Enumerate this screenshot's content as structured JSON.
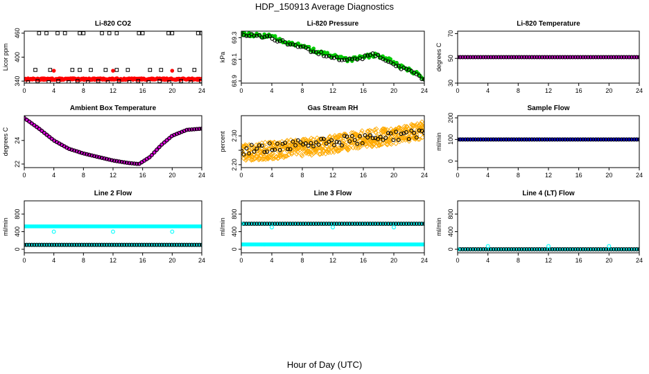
{
  "page": {
    "title": "HDP_150913  Average Diagnostics",
    "x_caption": "Hour of Day (UTC)"
  },
  "chart_data": [
    {
      "id": "co2",
      "type": "scatter",
      "title": "Li-820 CO2",
      "xlabel": "",
      "ylabel": "Licor ppm",
      "xlim": [
        0,
        24
      ],
      "ylim": [
        335,
        465
      ],
      "yticks": [
        340,
        400,
        460
      ],
      "xticks": [
        0,
        4,
        8,
        12,
        16,
        20,
        24
      ],
      "series": [
        {
          "values": {
            "mode": "flat",
            "y": 345,
            "jitter": 2,
            "count": 280
          },
          "color": "#ff0000",
          "symbol": "filled-circle"
        },
        {
          "values": {
            "mode": "list",
            "points": [
              [
                2,
                460
              ],
              [
                3,
                460
              ],
              [
                4.5,
                460
              ],
              [
                5.5,
                460
              ],
              [
                7.5,
                460
              ],
              [
                8,
                460
              ],
              [
                10.5,
                460
              ],
              [
                11.5,
                460
              ],
              [
                12.5,
                460
              ],
              [
                15.5,
                460
              ],
              [
                16,
                460
              ],
              [
                19.5,
                460
              ],
              [
                20,
                460
              ],
              [
                23.5,
                460
              ],
              [
                24,
                460
              ],
              [
                1.5,
                368
              ],
              [
                3.5,
                368
              ],
              [
                6.5,
                368
              ],
              [
                7.5,
                368
              ],
              [
                9,
                368
              ],
              [
                11,
                368
              ],
              [
                12.5,
                368
              ],
              [
                14,
                368
              ],
              [
                17,
                368
              ],
              [
                18.5,
                368
              ],
              [
                21,
                368
              ],
              [
                23,
                368
              ],
              [
                0.5,
                337
              ],
              [
                1.8,
                340
              ],
              [
                3.3,
                337
              ],
              [
                4.6,
                340
              ],
              [
                6,
                337
              ],
              [
                7.2,
                340
              ],
              [
                8.6,
                337
              ],
              [
                10,
                340
              ],
              [
                11.3,
                337
              ],
              [
                12.8,
                340
              ],
              [
                14.2,
                337
              ],
              [
                15.4,
                340
              ],
              [
                16.8,
                337
              ],
              [
                18.3,
                340
              ],
              [
                19.6,
                337
              ],
              [
                21.2,
                340
              ],
              [
                22.5,
                337
              ],
              [
                23.9,
                340
              ]
            ]
          },
          "color": "#000000",
          "symbol": "open-square"
        },
        {
          "values": {
            "mode": "list",
            "points": [
              [
                4,
                366
              ],
              [
                12,
                366
              ],
              [
                20,
                366
              ]
            ]
          },
          "color": "#ff0000",
          "symbol": "filled-circle"
        }
      ]
    },
    {
      "id": "pressure",
      "type": "scatter",
      "title": "Li-820 Pressure",
      "xlabel": "",
      "ylabel": "kPa",
      "xlim": [
        0,
        24
      ],
      "ylim": [
        68.88,
        69.36
      ],
      "yticks": [
        68.9,
        69.1,
        69.3
      ],
      "xticks": [
        0,
        4,
        8,
        12,
        16,
        20,
        24
      ],
      "series": [
        {
          "values": {
            "mode": "curve",
            "anchors": [
              [
                0,
                69.34
              ],
              [
                2,
                69.32
              ],
              [
                4,
                69.31
              ],
              [
                6,
                69.26
              ],
              [
                8,
                69.22
              ],
              [
                10,
                69.17
              ],
              [
                12,
                69.13
              ],
              [
                14,
                69.09
              ],
              [
                16,
                69.12
              ],
              [
                17.5,
                69.14
              ],
              [
                19,
                69.11
              ],
              [
                21,
                69.03
              ],
              [
                23,
                68.97
              ],
              [
                24,
                68.93
              ]
            ],
            "jitter": 0.018,
            "count": 120
          },
          "color": "#00cc00",
          "symbol": "filled-circle"
        },
        {
          "values": {
            "mode": "curve",
            "anchors": [
              [
                0,
                69.34
              ],
              [
                2,
                69.31
              ],
              [
                4,
                69.3
              ],
              [
                6,
                69.25
              ],
              [
                8,
                69.21
              ],
              [
                10,
                69.16
              ],
              [
                12,
                69.12
              ],
              [
                14,
                69.09
              ],
              [
                16,
                69.12
              ],
              [
                17.5,
                69.14
              ],
              [
                19,
                69.1
              ],
              [
                21,
                69.02
              ],
              [
                23,
                68.96
              ],
              [
                24,
                68.92
              ]
            ],
            "jitter": 0.018,
            "count": 72
          },
          "color": "#000000",
          "symbol": "open-circle"
        }
      ]
    },
    {
      "id": "temperature",
      "type": "scatter",
      "title": "Li-820 Temperature",
      "xlabel": "",
      "ylabel": "degrees C",
      "xlim": [
        0,
        24
      ],
      "ylim": [
        30,
        72
      ],
      "yticks": [
        30,
        50,
        70
      ],
      "xticks": [
        0,
        4,
        8,
        12,
        16,
        20,
        24
      ],
      "series": [
        {
          "values": {
            "mode": "flat",
            "y": 51,
            "jitter": 0,
            "count": 100
          },
          "color": "#dd00dd",
          "symbol": "filled-circle"
        },
        {
          "values": {
            "mode": "flat",
            "y": 51,
            "jitter": 0,
            "count": 72
          },
          "color": "#000000",
          "symbol": "open-circle"
        }
      ]
    },
    {
      "id": "ambient",
      "type": "scatter",
      "title": "Ambient Box Temperature",
      "xlabel": "",
      "ylabel": "degrees C",
      "xlim": [
        0,
        24
      ],
      "ylim": [
        21.7,
        26.1
      ],
      "yticks": [
        22,
        24
      ],
      "xticks": [
        0,
        4,
        8,
        12,
        16,
        20,
        24
      ],
      "series": [
        {
          "values": {
            "mode": "curve",
            "anchors": [
              [
                0,
                25.9
              ],
              [
                2,
                25.0
              ],
              [
                4,
                24.0
              ],
              [
                6,
                23.3
              ],
              [
                8,
                22.9
              ],
              [
                10,
                22.6
              ],
              [
                12,
                22.3
              ],
              [
                14,
                22.1
              ],
              [
                15.5,
                22.0
              ],
              [
                17,
                22.6
              ],
              [
                18.5,
                23.6
              ],
              [
                20,
                24.4
              ],
              [
                22,
                24.9
              ],
              [
                24,
                25.0
              ]
            ],
            "jitter": 0,
            "count": 90
          },
          "color": "#dd00dd",
          "symbol": "filled-circle"
        },
        {
          "values": {
            "mode": "curve",
            "anchors": [
              [
                0,
                25.9
              ],
              [
                2,
                25.0
              ],
              [
                4,
                24.0
              ],
              [
                6,
                23.3
              ],
              [
                8,
                22.9
              ],
              [
                10,
                22.6
              ],
              [
                12,
                22.3
              ],
              [
                14,
                22.1
              ],
              [
                15.5,
                22.0
              ],
              [
                17,
                22.6
              ],
              [
                18.5,
                23.6
              ],
              [
                20,
                24.4
              ],
              [
                22,
                24.9
              ],
              [
                24,
                25.0
              ]
            ],
            "jitter": 0,
            "count": 72
          },
          "color": "#000000",
          "symbol": "open-circle"
        }
      ]
    },
    {
      "id": "rh",
      "type": "scatter",
      "title": "Gas Stream RH",
      "xlabel": "",
      "ylabel": "percent",
      "xlim": [
        0,
        24
      ],
      "ylim": [
        2.19,
        2.37
      ],
      "yticks": [
        2.2,
        2.25,
        2.3
      ],
      "ytick_labels": [
        "2.20",
        "",
        "2.30"
      ],
      "xticks": [
        0,
        4,
        8,
        12,
        16,
        20,
        24
      ],
      "series": [
        {
          "values": {
            "mode": "curve",
            "anchors": [
              [
                0,
                2.24
              ],
              [
                4,
                2.25
              ],
              [
                8,
                2.26
              ],
              [
                12,
                2.27
              ],
              [
                16,
                2.29
              ],
              [
                20,
                2.3
              ],
              [
                24,
                2.32
              ]
            ],
            "jitter": 0.03,
            "count": 600
          },
          "color": "#ffaa00",
          "symbol": "open-diamond"
        },
        {
          "values": {
            "mode": "curve",
            "anchors": [
              [
                0,
                2.25
              ],
              [
                4,
                2.26
              ],
              [
                8,
                2.27
              ],
              [
                12,
                2.28
              ],
              [
                16,
                2.29
              ],
              [
                20,
                2.3
              ],
              [
                24,
                2.31
              ]
            ],
            "jitter": 0.017,
            "count": 72
          },
          "color": "#000000",
          "symbol": "open-circle"
        }
      ]
    },
    {
      "id": "sample_flow",
      "type": "scatter",
      "title": "Sample Flow",
      "xlabel": "",
      "ylabel": "ml/min",
      "xlim": [
        0,
        24
      ],
      "ylim": [
        -30,
        210
      ],
      "yticks": [
        0,
        100,
        200
      ],
      "xticks": [
        0,
        4,
        8,
        12,
        16,
        20,
        24
      ],
      "series": [
        {
          "values": {
            "mode": "flat",
            "y": 100,
            "jitter": 0,
            "count": 100
          },
          "color": "#0000ff",
          "symbol": "filled-circle"
        },
        {
          "values": {
            "mode": "flat",
            "y": 100,
            "jitter": 0,
            "count": 72
          },
          "color": "#000000",
          "symbol": "open-circle"
        }
      ]
    },
    {
      "id": "line2",
      "type": "scatter",
      "title": "Line 2 Flow",
      "xlabel": "",
      "ylabel": "ml/min",
      "xlim": [
        0,
        24
      ],
      "ylim": [
        -80,
        1100
      ],
      "yticks": [
        0,
        400,
        800
      ],
      "xticks": [
        0,
        4,
        8,
        12,
        16,
        20,
        24
      ],
      "series": [
        {
          "values": {
            "mode": "flat",
            "y": 520,
            "jitter": 0,
            "count": 170
          },
          "color": "#00ffff",
          "symbol": "filled-circle"
        },
        {
          "values": {
            "mode": "flat",
            "y": 100,
            "jitter": 0,
            "count": 170
          },
          "color": "#00ffff",
          "symbol": "filled-circle"
        },
        {
          "values": {
            "mode": "flat",
            "y": 100,
            "jitter": 0,
            "count": 72
          },
          "color": "#000000",
          "symbol": "open-circle"
        },
        {
          "values": {
            "mode": "list",
            "points": [
              [
                4,
                400
              ],
              [
                12,
                400
              ],
              [
                20,
                400
              ]
            ]
          },
          "color": "#00ffff",
          "symbol": "open-circle"
        }
      ]
    },
    {
      "id": "line3",
      "type": "scatter",
      "title": "Line 3 Flow",
      "xlabel": "",
      "ylabel": "ml/min",
      "xlim": [
        0,
        24
      ],
      "ylim": [
        -80,
        1100
      ],
      "yticks": [
        0,
        400,
        800
      ],
      "xticks": [
        0,
        4,
        8,
        12,
        16,
        20,
        24
      ],
      "series": [
        {
          "values": {
            "mode": "flat",
            "y": 110,
            "jitter": 0,
            "count": 170
          },
          "color": "#00ffff",
          "symbol": "filled-circle"
        },
        {
          "values": {
            "mode": "flat",
            "y": 580,
            "jitter": 0,
            "count": 100
          },
          "color": "#00ffff",
          "symbol": "filled-circle"
        },
        {
          "values": {
            "mode": "flat",
            "y": 580,
            "jitter": 0,
            "count": 72
          },
          "color": "#000000",
          "symbol": "open-circle"
        },
        {
          "values": {
            "mode": "list",
            "points": [
              [
                0,
                580
              ],
              [
                4,
                500
              ],
              [
                12,
                500
              ],
              [
                20,
                500
              ]
            ]
          },
          "color": "#00ffff",
          "symbol": "open-circle"
        }
      ]
    },
    {
      "id": "line4",
      "type": "scatter",
      "title": "Line 4 (LT) Flow",
      "xlabel": "",
      "ylabel": "ml/min",
      "xlim": [
        0,
        24
      ],
      "ylim": [
        -80,
        1100
      ],
      "yticks": [
        0,
        400,
        800
      ],
      "xticks": [
        0,
        4,
        8,
        12,
        16,
        20,
        24
      ],
      "series": [
        {
          "values": {
            "mode": "flat",
            "y": 0,
            "jitter": 0,
            "count": 100
          },
          "color": "#00ffff",
          "symbol": "filled-circle"
        },
        {
          "values": {
            "mode": "flat",
            "y": 0,
            "jitter": 0,
            "count": 72
          },
          "color": "#000000",
          "symbol": "open-circle"
        },
        {
          "values": {
            "mode": "list",
            "points": [
              [
                0,
                0
              ],
              [
                4,
                70
              ],
              [
                12,
                70
              ],
              [
                20,
                70
              ]
            ]
          },
          "color": "#00ffff",
          "symbol": "open-circle"
        }
      ]
    }
  ]
}
